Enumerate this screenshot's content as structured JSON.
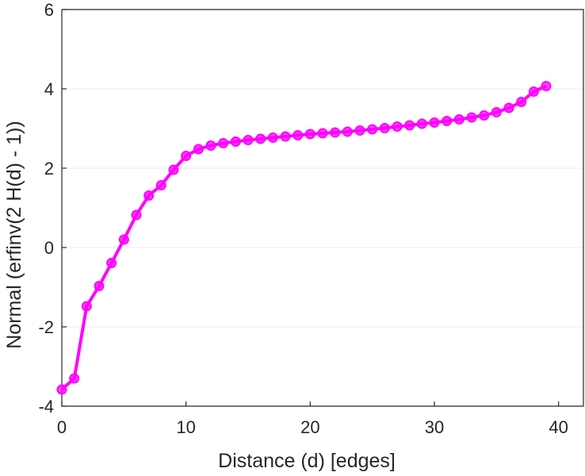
{
  "chart_data": {
    "type": "line",
    "xlabel": "Distance (d) [edges]",
    "ylabel": "Normal (erfinv(2 H(d) - 1))",
    "xlim": [
      0,
      42
    ],
    "ylim": [
      -4,
      6
    ],
    "xticks": [
      0,
      10,
      20,
      30,
      40
    ],
    "yticks": [
      -4,
      -2,
      0,
      2,
      4,
      6
    ],
    "xtick_labels": [
      "0",
      "10",
      "20",
      "30",
      "40"
    ],
    "ytick_labels": [
      "-4",
      "-2",
      "0",
      "2",
      "4",
      "6"
    ],
    "grid": "horizontal",
    "series": [
      {
        "color": "#ff00ff",
        "marker": "circle",
        "x": [
          0,
          1,
          2,
          3,
          4,
          5,
          6,
          7,
          8,
          9,
          10,
          11,
          12,
          13,
          14,
          15,
          16,
          17,
          18,
          19,
          20,
          21,
          22,
          23,
          24,
          25,
          26,
          27,
          28,
          29,
          30,
          31,
          32,
          33,
          34,
          35,
          36,
          37,
          38,
          39
        ],
        "y": [
          -3.58,
          -3.3,
          -1.48,
          -0.97,
          -0.39,
          0.2,
          0.82,
          1.31,
          1.57,
          1.96,
          2.31,
          2.48,
          2.57,
          2.63,
          2.67,
          2.71,
          2.74,
          2.77,
          2.8,
          2.83,
          2.86,
          2.88,
          2.9,
          2.92,
          2.95,
          2.98,
          3.01,
          3.05,
          3.08,
          3.12,
          3.15,
          3.19,
          3.23,
          3.28,
          3.33,
          3.41,
          3.52,
          3.67,
          3.93,
          4.07
        ]
      }
    ]
  }
}
